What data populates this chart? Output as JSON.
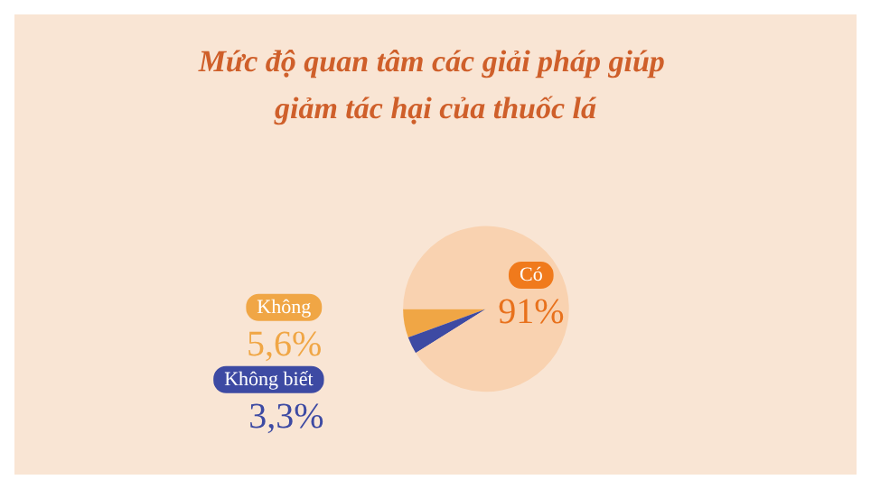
{
  "chart_data": {
    "type": "pie",
    "title": "Mức độ quan tâm các giải pháp giúp giảm tác hại của thuốc lá",
    "categories": [
      "Không",
      "Không biết",
      "Có"
    ],
    "values": [
      5.6,
      3.3,
      91
    ],
    "colors": [
      "#f0a645",
      "#3d4aa3",
      "#f9d2b0"
    ],
    "value_labels": [
      "5,6%",
      "3,3%",
      "91%"
    ]
  }
}
